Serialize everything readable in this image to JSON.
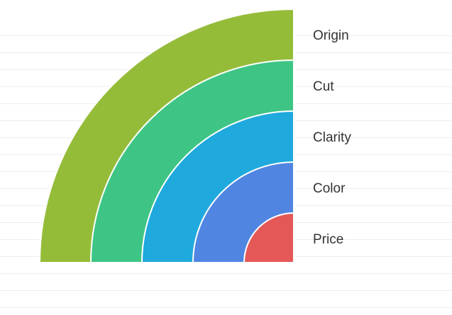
{
  "chart_data": {
    "type": "radial-bar",
    "title": "",
    "grid": true,
    "legend_placement": "none",
    "categories": [
      "Origin",
      "Cut",
      "Clarity",
      "Color",
      "Price"
    ],
    "colors": [
      "#95BC39",
      "#3EC585",
      "#1FA9DD",
      "#5086E2",
      "#E55858"
    ],
    "separator_color": "#ffffff"
  }
}
